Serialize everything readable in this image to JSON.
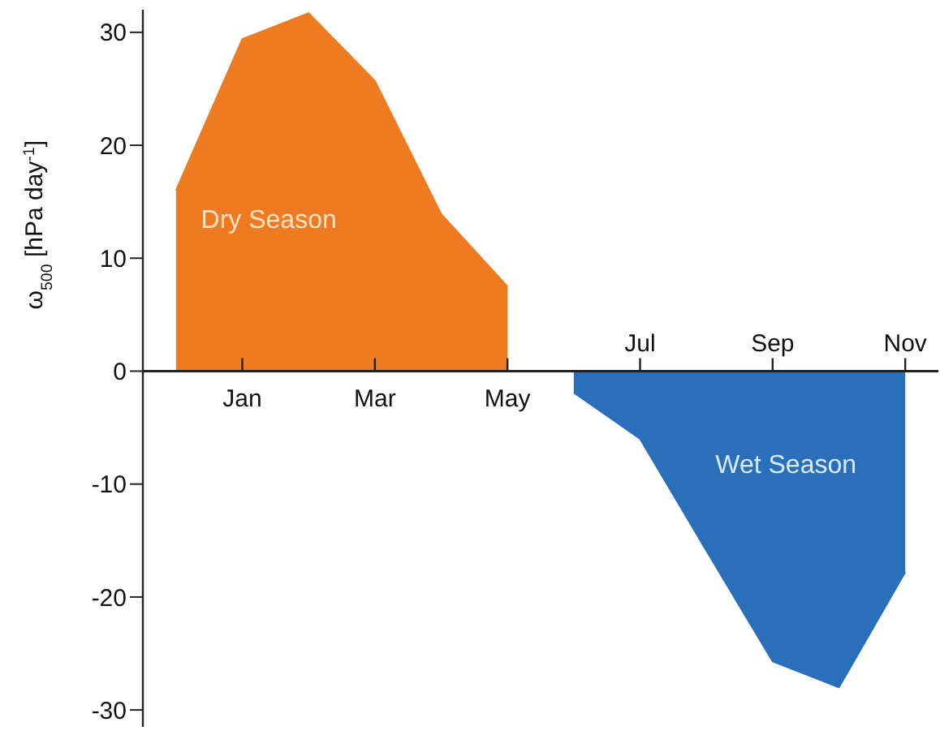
{
  "chart_data": {
    "type": "area",
    "ylabel": "ω$_{500}$ [hPa day$^{-1}$]",
    "categories": [
      null,
      "Jan",
      null,
      "Mar",
      null,
      "May",
      null,
      "Jul",
      null,
      "Sep",
      null,
      "Nov"
    ],
    "ylim": [
      -31.5,
      32
    ],
    "yticks": [
      -30,
      -20,
      -10,
      0,
      10,
      20,
      30
    ],
    "series": [
      {
        "color": "#ee7b22",
        "values": [
          16,
          29.4,
          31.7,
          25.7,
          13.9,
          7.5,
          null,
          null,
          null,
          null,
          null,
          null
        ]
      },
      {
        "color": "#2a6fb9",
        "values": [
          null,
          null,
          null,
          null,
          null,
          null,
          -1.9,
          -6,
          -15.9,
          -25.7,
          -28,
          -17.8
        ]
      }
    ],
    "annotations": [
      "Dry Season",
      "Wet Season"
    ]
  }
}
